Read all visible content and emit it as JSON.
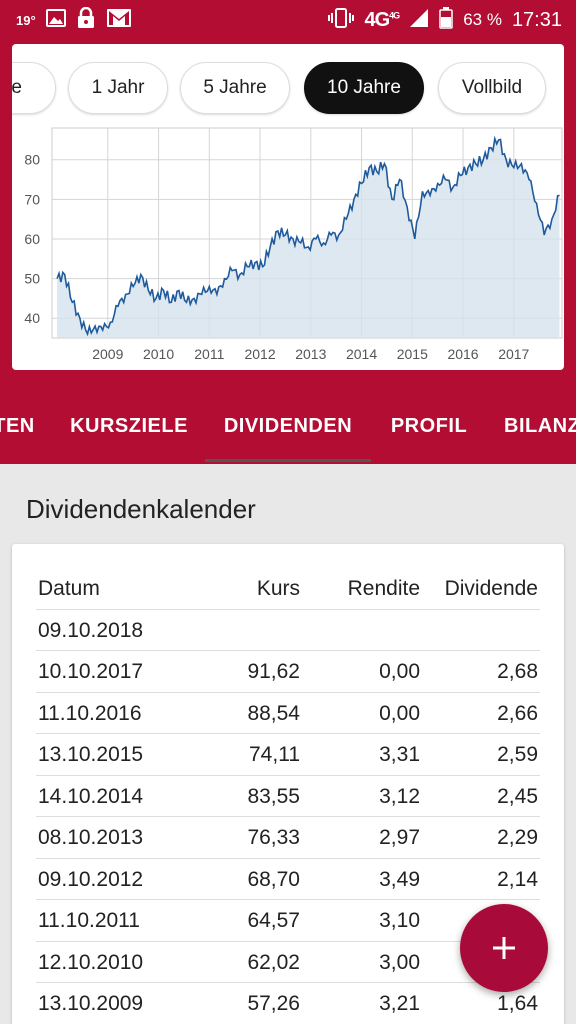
{
  "status_bar": {
    "temperature": "19°",
    "network": "4G",
    "network_small": "4G",
    "battery": "63 %",
    "time": "17:31"
  },
  "range_buttons": [
    {
      "label": "te",
      "active": false
    },
    {
      "label": "1 Jahr",
      "active": false
    },
    {
      "label": "5 Jahre",
      "active": false
    },
    {
      "label": "10 Jahre",
      "active": true
    },
    {
      "label": "Vollbild",
      "active": false
    }
  ],
  "tabs": [
    {
      "label": "TEN",
      "active": false
    },
    {
      "label": "KURSZIELE",
      "active": false
    },
    {
      "label": "DIVIDENDEN",
      "active": true
    },
    {
      "label": "PROFIL",
      "active": false
    },
    {
      "label": "BILANZ",
      "active": false
    }
  ],
  "section_title": "Dividendenkalender",
  "table": {
    "headers": {
      "date": "Datum",
      "kurs": "Kurs",
      "rendite": "Rendite",
      "dividende": "Dividende"
    },
    "rows": [
      {
        "date": "09.10.2018",
        "kurs": "",
        "rendite": "",
        "dividende": ""
      },
      {
        "date": "10.10.2017",
        "kurs": "91,62",
        "rendite": "0,00",
        "dividende": "2,68"
      },
      {
        "date": "11.10.2016",
        "kurs": "88,54",
        "rendite": "0,00",
        "dividende": "2,66"
      },
      {
        "date": "13.10.2015",
        "kurs": "74,11",
        "rendite": "3,31",
        "dividende": "2,59"
      },
      {
        "date": "14.10.2014",
        "kurs": "83,55",
        "rendite": "3,12",
        "dividende": "2,45"
      },
      {
        "date": "08.10.2013",
        "kurs": "76,33",
        "rendite": "2,97",
        "dividende": "2,29"
      },
      {
        "date": "09.10.2012",
        "kurs": "68,70",
        "rendite": "3,49",
        "dividende": "2,14"
      },
      {
        "date": "11.10.2011",
        "kurs": "64,57",
        "rendite": "3,10",
        "dividende": ""
      },
      {
        "date": "12.10.2010",
        "kurs": "62,02",
        "rendite": "3,00",
        "dividende": ""
      },
      {
        "date": "13.10.2009",
        "kurs": "57,26",
        "rendite": "3,21",
        "dividende": "1,64"
      }
    ]
  },
  "fab": {
    "icon": "plus-icon",
    "label": "+"
  },
  "colors": {
    "brand": "#b30d33",
    "line": "#1f5a9c",
    "fill": "#d6e2ee",
    "fab": "#a80a3a"
  },
  "chart_data": {
    "type": "line",
    "ylim": [
      35,
      88
    ],
    "y_ticks": [
      40,
      50,
      60,
      70,
      80
    ],
    "x_ticks": [
      "2009",
      "2010",
      "2011",
      "2012",
      "2013",
      "2014",
      "2015",
      "2016",
      "2017"
    ],
    "grid": true,
    "series": [
      {
        "x": [
          2008.0,
          2008.15,
          2008.3,
          2008.45,
          2008.6,
          2008.75,
          2008.9,
          2009.05,
          2009.2,
          2009.35,
          2009.5,
          2009.65,
          2009.8,
          2009.95,
          2010.1,
          2010.25,
          2010.4,
          2010.55,
          2010.7,
          2010.85,
          2011.0,
          2011.15,
          2011.3,
          2011.45,
          2011.6,
          2011.75,
          2011.9,
          2012.05,
          2012.2,
          2012.35,
          2012.5,
          2012.65,
          2012.8,
          2012.95,
          2013.1,
          2013.25,
          2013.4,
          2013.55,
          2013.7,
          2013.85,
          2014.0,
          2014.15,
          2014.3,
          2014.45,
          2014.6,
          2014.75,
          2014.9,
          2015.05,
          2015.2,
          2015.35,
          2015.5,
          2015.65,
          2015.8,
          2015.95,
          2016.1,
          2016.25,
          2016.4,
          2016.55,
          2016.7,
          2016.85,
          2017.0,
          2017.15,
          2017.3,
          2017.45,
          2017.6,
          2017.75,
          2017.9
        ],
        "y": [
          50,
          51,
          44,
          40,
          36,
          38,
          37,
          39,
          43,
          46,
          48,
          51,
          47,
          45,
          47,
          44,
          47,
          44,
          45,
          46,
          48,
          46,
          50,
          52,
          51,
          53,
          54,
          53,
          58,
          62,
          61,
          60,
          59,
          58,
          60,
          59,
          61,
          61,
          65,
          70,
          74,
          78,
          77,
          79,
          70,
          75,
          68,
          60,
          72,
          71,
          74,
          75,
          73,
          76,
          78,
          79,
          80,
          83,
          85,
          80,
          78,
          79,
          75,
          69,
          61,
          65,
          71
        ]
      }
    ]
  }
}
